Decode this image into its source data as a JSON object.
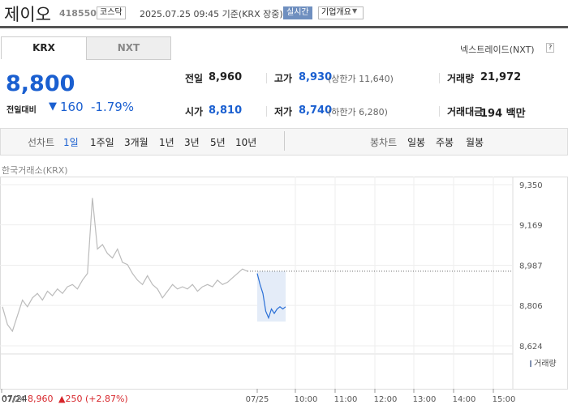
{
  "header": {
    "name": "제이오",
    "code": "418550",
    "market": "코스닥",
    "timestamp": "2025.07.25 09:45 기준(KRX 장중)",
    "realtime": "실시간",
    "company_info": "기업개요"
  },
  "tabs": {
    "krx": "KRX",
    "nxt": "NXT",
    "nxt_link": "넥스트레이드(NXT)",
    "help": "?"
  },
  "price": {
    "current": "8,800",
    "change_label": "전일대비",
    "change": "160",
    "change_rate": "-1.79%"
  },
  "stats": [
    [
      {
        "label": "전일",
        "value": "8,960"
      },
      {
        "label": "고가",
        "value": "8,930",
        "note": "(상한가 11,640)"
      },
      {
        "label": "거래량",
        "value": "21,972"
      }
    ],
    [
      {
        "label": "시가",
        "value": "8,810"
      },
      {
        "label": "저가",
        "value": "8,740",
        "note": "(하한가 6,280)"
      },
      {
        "label": "거래대금",
        "value": "194 백만"
      }
    ]
  ],
  "periods": {
    "line_label": "선차트",
    "line": [
      "1일",
      "1주일",
      "3개월",
      "1년",
      "3년",
      "5년",
      "10년"
    ],
    "candle_label": "봉차트",
    "candle": [
      "일봉",
      "주봉",
      "월봉"
    ]
  },
  "chart": {
    "source": "한국거래소(KRX)",
    "ylim": [
      8624,
      9350
    ],
    "yticks": [
      {
        "value": 9350,
        "label": "9,350"
      },
      {
        "value": 9169,
        "label": "9,169"
      },
      {
        "value": 8987,
        "label": "8,987"
      },
      {
        "value": 8806,
        "label": "8,806"
      },
      {
        "value": 8624,
        "label": "8,624"
      }
    ],
    "reference": 8960,
    "previous_day": [
      8800,
      8720,
      8690,
      8760,
      8830,
      8800,
      8840,
      8860,
      8830,
      8870,
      8850,
      8880,
      8860,
      8890,
      8900,
      8880,
      8920,
      8950,
      9290,
      9060,
      9080,
      9040,
      9020,
      9060,
      9000,
      8990,
      8950,
      8920,
      8900,
      8940,
      8900,
      8880,
      8840,
      8870,
      8900,
      8880,
      8890,
      8880,
      8900,
      8870,
      8890,
      8900,
      8890,
      8920,
      8900,
      8910,
      8930,
      8950,
      8970,
      8960
    ],
    "today": [
      8950,
      8900,
      8860,
      8780,
      8750,
      8790,
      8770,
      8790,
      8800,
      8790,
      8800
    ],
    "volume_label": "거래량",
    "x_labels": [
      "07/24",
      "07/25",
      "10:00",
      "11:00",
      "12:00",
      "13:00",
      "14:00",
      "15:00"
    ]
  },
  "footer": {
    "date": "07/24",
    "close": "8,960",
    "change": "▲250 (+2.87%)"
  }
}
